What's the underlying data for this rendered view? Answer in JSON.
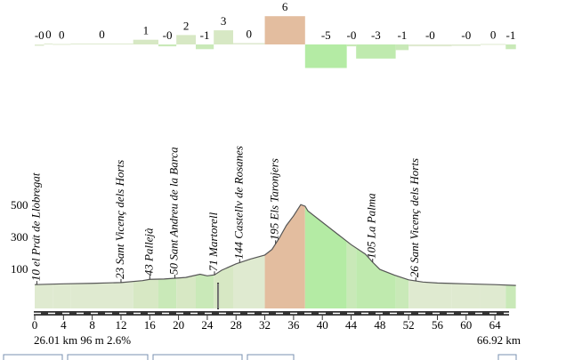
{
  "chart_data": {
    "type": "area",
    "gradient": {
      "start": [
        0,
        1.3,
        2.5,
        5,
        13.7,
        17.2,
        19.7,
        22.4,
        24.9,
        27.6,
        32,
        37.6,
        43.4,
        44.7,
        50.2,
        52,
        58,
        62,
        65.5
      ],
      "end": [
        1.3,
        2.5,
        5,
        13.7,
        17.2,
        19.7,
        22.4,
        24.9,
        27.6,
        32,
        37.6,
        43.4,
        44.7,
        50.2,
        52,
        58,
        62,
        65.5,
        66.92
      ],
      "values": [
        -0.3,
        0.2,
        0.1,
        0.2,
        1.0,
        -0.4,
        2.0,
        -1.0,
        3.0,
        0.3,
        6.0,
        -5.0,
        -0.4,
        -3.0,
        -1.2,
        -0.4,
        -0.3,
        0.1,
        -1.0
      ],
      "value_labels": [
        "-0",
        "0",
        "0",
        "0",
        "1",
        "-0",
        "2",
        "-1",
        "3",
        "0",
        "6",
        "-5",
        "-0",
        "-3",
        "-1",
        "-0",
        "-0",
        "0",
        "-1"
      ],
      "colors": [
        "#dfead0",
        "#dfead0",
        "#dfead0",
        "#dfead0",
        "#d7e8c4",
        "#c9e9b8",
        "#d7e8c4",
        "#c9e9b8",
        "#d7e8c4",
        "#dfead0",
        "#e3bd9f",
        "#b4eba4",
        "#c9e9b8",
        "#bfeaae",
        "#c9e9b8",
        "#dfead0",
        "#dfead0",
        "#dfead0",
        "#c9e9b8"
      ]
    },
    "x": [
      0,
      4,
      8,
      12,
      15,
      16,
      18,
      19.5,
      21,
      23,
      24,
      25,
      26,
      28,
      30,
      32,
      33,
      34,
      35,
      36,
      37,
      37.6,
      38,
      40,
      42,
      44,
      46,
      47,
      48,
      50,
      52,
      54,
      56,
      60,
      64,
      66.92
    ],
    "values": [
      10,
      15,
      18,
      23,
      35,
      43,
      45,
      50,
      55,
      75,
      65,
      71,
      100,
      140,
      170,
      195,
      230,
      300,
      380,
      440,
      510,
      500,
      470,
      400,
      330,
      260,
      200,
      150,
      105,
      70,
      40,
      26,
      20,
      15,
      10,
      5
    ],
    "xlim": [
      0,
      66.92
    ],
    "xticks": [
      0,
      4,
      8,
      12,
      16,
      20,
      24,
      28,
      32,
      36,
      40,
      44,
      48,
      52,
      56,
      60,
      64
    ],
    "ylim": [
      0,
      600
    ],
    "yticks": [
      100,
      300,
      500
    ],
    "places": {
      "labels": [
        "10 el Prat de Llobregat",
        "23 Sant Vicenç dels Horts",
        "43 Pallejà",
        "50 Sant Andreu de la Barca",
        "71 Martorell",
        "144 Castellv de Rosanes",
        "195 Els Taronjers",
        "105 La Palma",
        "26 Sant Vicenç dels Horts"
      ],
      "km": [
        0.3,
        12,
        16,
        19.5,
        25,
        28.5,
        33.5,
        47,
        53
      ]
    },
    "cursor": {
      "km": 25.5,
      "label": "26.01 km 96 m 2.6%"
    },
    "end_label": "66.92 km"
  }
}
